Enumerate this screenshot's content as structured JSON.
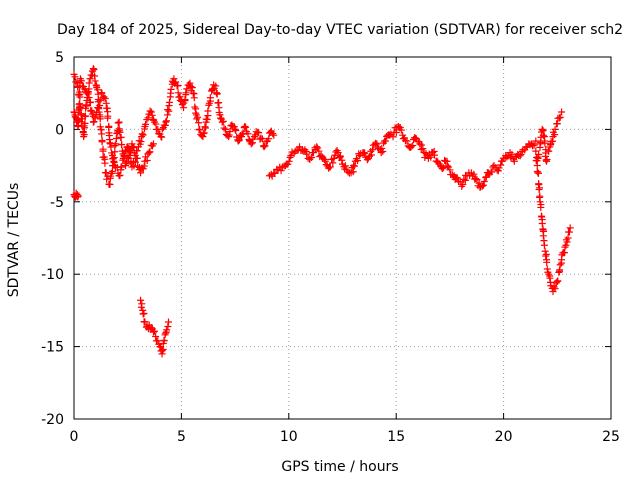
{
  "chart_data": {
    "type": "scatter",
    "title": "Day 184 of 2025, Sidereal Day-to-day VTEC variation (SDTVAR) for receiver sch2",
    "xlabel": "GPS time / hours",
    "ylabel": "SDTVAR / TECUs",
    "xlim": [
      0,
      25
    ],
    "ylim": [
      -20,
      5
    ],
    "xticks": [
      0,
      5,
      10,
      15,
      20,
      25
    ],
    "yticks": [
      5,
      0,
      -5,
      -10,
      -15,
      -20
    ],
    "grid": true,
    "marker": "plus",
    "color": "#ff0000",
    "series": [
      {
        "name": "SDTVAR",
        "segments": [
          {
            "x": [
              0.0,
              0.15,
              0.3,
              0.45,
              0.6,
              0.75,
              0.9,
              1.05,
              1.2,
              1.35,
              1.5,
              1.65,
              1.8,
              1.95,
              2.1,
              2.25,
              2.4,
              2.55,
              2.7,
              2.85,
              3.0,
              3.15,
              3.3,
              3.45,
              3.6,
              3.75,
              3.9,
              4.05,
              4.2,
              4.35,
              4.5,
              4.65,
              4.8,
              4.95,
              5.1,
              5.25,
              5.4,
              5.55,
              5.7,
              5.85,
              6.0,
              6.15,
              6.3,
              6.45,
              6.6,
              6.75,
              6.9,
              7.05,
              7.2,
              7.35,
              7.5,
              7.65,
              7.8,
              7.95,
              8.1,
              8.25,
              8.4,
              8.55,
              8.7,
              8.85,
              9.0,
              9.15,
              9.3
            ],
            "y": [
              3.8,
              3.2,
              1.5,
              -0.5,
              2.0,
              3.5,
              4.2,
              3.0,
              1.0,
              -1.5,
              -3.0,
              -3.8,
              -2.5,
              -1.0,
              0.5,
              -1.5,
              -2.5,
              -2.0,
              -1.0,
              -1.8,
              -1.2,
              -0.5,
              0.2,
              0.8,
              1.2,
              0.5,
              0.0,
              -0.5,
              0.3,
              1.0,
              2.5,
              3.5,
              3.0,
              2.0,
              1.5,
              2.8,
              3.2,
              2.5,
              1.0,
              0.0,
              -0.5,
              0.5,
              1.8,
              2.8,
              3.0,
              1.5,
              0.5,
              0.0,
              -0.5,
              0.3,
              0.0,
              -0.8,
              -0.5,
              0.2,
              -0.3,
              -1.0,
              -0.5,
              -0.2,
              -0.6,
              -1.2,
              -0.8,
              -0.2,
              -0.4
            ]
          },
          {
            "x": [
              0.0,
              0.05,
              0.1,
              0.15,
              0.2,
              0.3,
              0.5,
              0.7,
              0.9,
              1.1,
              1.3,
              1.5,
              1.7,
              1.9,
              2.1,
              2.3,
              2.5,
              2.7,
              2.9,
              3.1,
              3.3,
              3.5,
              3.7
            ],
            "y": [
              1.2,
              1.0,
              0.8,
              0.6,
              0.2,
              3.5,
              2.8,
              2.2,
              0.5,
              1.5,
              2.5,
              1.8,
              -1.0,
              -2.5,
              -3.2,
              -2.0,
              -1.2,
              -2.6,
              -2.0,
              -3.0,
              -2.2,
              -1.6,
              -1.0
            ]
          },
          {
            "x": [
              0.0,
              0.05,
              0.1,
              0.15,
              0.2
            ],
            "y": [
              -4.5,
              -4.6,
              -4.4,
              -4.5,
              -4.6
            ]
          },
          {
            "x": [
              3.1,
              3.2,
              3.3,
              3.4,
              3.5,
              3.6,
              3.7,
              3.8,
              3.9,
              4.0,
              4.05,
              4.1,
              4.15,
              4.2,
              4.3,
              4.4
            ],
            "y": [
              -11.8,
              -12.5,
              -13.3,
              -13.6,
              -13.5,
              -13.7,
              -14.0,
              -14.3,
              -14.6,
              -15.0,
              -15.3,
              -15.5,
              -15.2,
              -14.6,
              -14.0,
              -13.3
            ]
          },
          {
            "x": [
              9.1,
              9.3,
              9.5,
              9.7,
              9.9,
              10.1,
              10.3,
              10.5,
              10.7,
              10.9,
              11.1,
              11.3,
              11.5,
              11.7,
              11.9,
              12.1,
              12.3,
              12.5,
              12.7,
              12.9,
              13.1,
              13.3,
              13.5,
              13.7,
              13.9,
              14.1,
              14.3,
              14.5,
              14.7,
              14.9,
              15.1,
              15.3,
              15.5,
              15.7,
              15.9,
              16.1,
              16.3,
              16.5,
              16.7,
              16.9,
              17.1,
              17.3,
              17.5,
              17.7,
              17.9,
              18.1,
              18.3,
              18.5,
              18.7,
              18.9,
              19.1,
              19.3,
              19.5,
              19.7,
              19.9,
              20.1,
              20.3,
              20.5,
              20.7,
              20.9,
              21.1,
              21.3,
              21.5
            ],
            "y": [
              -3.2,
              -3.0,
              -2.8,
              -2.6,
              -2.4,
              -1.8,
              -1.5,
              -1.2,
              -1.5,
              -2.0,
              -1.6,
              -1.2,
              -1.8,
              -2.2,
              -2.6,
              -2.0,
              -1.6,
              -2.4,
              -2.8,
              -3.0,
              -2.2,
              -1.8,
              -1.6,
              -2.0,
              -1.4,
              -1.0,
              -1.6,
              -0.8,
              -0.4,
              -0.2,
              0.2,
              -0.4,
              -0.8,
              -1.2,
              -0.6,
              -1.0,
              -1.6,
              -2.0,
              -1.6,
              -2.2,
              -2.6,
              -2.2,
              -2.8,
              -3.2,
              -3.6,
              -3.8,
              -3.2,
              -3.0,
              -3.4,
              -4.0,
              -3.6,
              -3.0,
              -2.6,
              -2.8,
              -2.2,
              -1.8,
              -1.6,
              -2.2,
              -1.8,
              -1.4,
              -1.2,
              -1.0,
              -0.8
            ]
          },
          {
            "x": [
              21.5,
              21.6,
              21.7,
              21.8,
              21.9,
              22.0,
              22.1,
              22.2,
              22.3,
              22.4,
              22.5,
              22.6,
              22.7,
              22.8,
              22.9,
              23.0,
              23.1
            ],
            "y": [
              -1.5,
              -3.0,
              -5.0,
              -6.5,
              -8.0,
              -9.0,
              -10.0,
              -10.8,
              -11.2,
              -11.0,
              -10.5,
              -9.8,
              -9.0,
              -8.5,
              -8.0,
              -7.5,
              -6.8
            ]
          },
          {
            "x": [
              21.6,
              21.7,
              21.8,
              21.9,
              22.0,
              22.1,
              22.2,
              22.3,
              22.4,
              22.5,
              22.6,
              22.7
            ],
            "y": [
              -2.0,
              -1.0,
              0.0,
              -0.5,
              -2.2,
              -1.5,
              -1.0,
              -0.5,
              0.0,
              0.4,
              0.8,
              1.2
            ]
          }
        ]
      }
    ]
  }
}
